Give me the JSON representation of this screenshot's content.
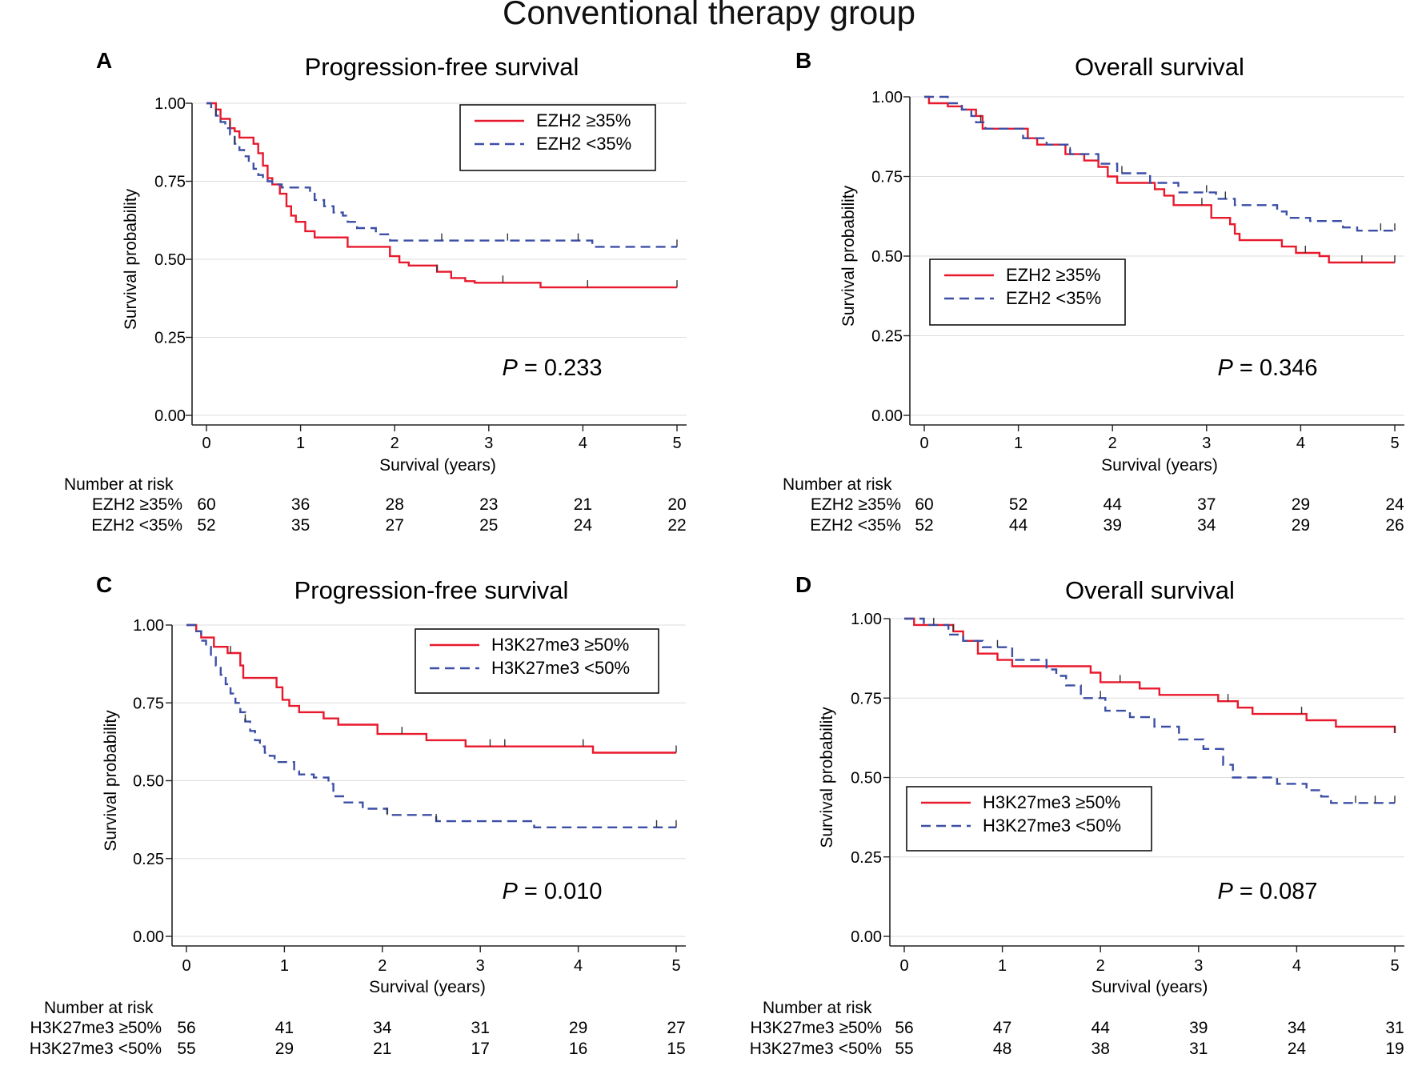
{
  "figure_title": "Conventional therapy group",
  "colors": {
    "series_a": "#e8192c",
    "series_b": "#3c4fa5",
    "axis": "#222222",
    "grid": "#dddddd"
  },
  "chart_data": [
    {
      "type": "line",
      "panel_label": "A",
      "title": "Progression-free survival",
      "xlabel": "Survival (years)",
      "ylabel": "Survival probability",
      "xlim": [
        0,
        5
      ],
      "ylim": [
        0,
        1
      ],
      "xticks": [
        "0",
        "1",
        "2",
        "3",
        "4",
        "5"
      ],
      "yticks": [
        "0.00",
        "0.25",
        "0.50",
        "0.75",
        "1.00"
      ],
      "legend_position": "top-right",
      "p_value": "= 0.233",
      "series": [
        {
          "name": "EZH2 ≥35%",
          "style": "solid",
          "x": [
            0,
            0.1,
            0.15,
            0.25,
            0.3,
            0.35,
            0.5,
            0.55,
            0.6,
            0.65,
            0.7,
            0.78,
            0.85,
            0.9,
            0.95,
            1.05,
            1.15,
            1.5,
            1.95,
            2.05,
            2.15,
            2.45,
            2.6,
            2.75,
            2.85,
            3.55,
            5
          ],
          "y": [
            1.0,
            0.98,
            0.95,
            0.92,
            0.91,
            0.89,
            0.87,
            0.84,
            0.8,
            0.76,
            0.74,
            0.71,
            0.67,
            0.64,
            0.62,
            0.59,
            0.57,
            0.54,
            0.51,
            0.49,
            0.48,
            0.46,
            0.44,
            0.43,
            0.425,
            0.41,
            0.41
          ],
          "censor_x": [
            0.25,
            2.45,
            3.15,
            4.05,
            5.0
          ]
        },
        {
          "name": "EZH2 <35%",
          "style": "dashed",
          "x": [
            0,
            0.05,
            0.1,
            0.15,
            0.2,
            0.25,
            0.3,
            0.35,
            0.4,
            0.45,
            0.5,
            0.55,
            0.6,
            0.65,
            0.7,
            0.8,
            1.1,
            1.15,
            1.25,
            1.35,
            1.45,
            1.5,
            1.6,
            1.8,
            1.95,
            4.1,
            5
          ],
          "y": [
            1.0,
            0.98,
            0.96,
            0.94,
            0.92,
            0.9,
            0.87,
            0.85,
            0.83,
            0.81,
            0.79,
            0.77,
            0.76,
            0.75,
            0.74,
            0.73,
            0.71,
            0.69,
            0.67,
            0.65,
            0.64,
            0.62,
            0.6,
            0.58,
            0.56,
            0.54,
            0.54
          ],
          "censor_x": [
            0.1,
            0.3,
            2.5,
            3.2,
            3.95,
            5.0
          ]
        }
      ],
      "risk_table": {
        "header": "Number at risk",
        "rows": [
          {
            "label": "EZH2 ≥35%",
            "values": [
              "60",
              "36",
              "28",
              "23",
              "21",
              "20"
            ]
          },
          {
            "label": "EZH2 <35%",
            "values": [
              "52",
              "35",
              "27",
              "25",
              "24",
              "22"
            ]
          }
        ]
      }
    },
    {
      "type": "line",
      "panel_label": "B",
      "title": "Overall survival",
      "xlabel": "Survival (years)",
      "ylabel": "Survival probability",
      "xlim": [
        0,
        5
      ],
      "ylim": [
        0,
        1
      ],
      "xticks": [
        "0",
        "1",
        "2",
        "3",
        "4",
        "5"
      ],
      "yticks": [
        "0.00",
        "0.25",
        "0.50",
        "0.75",
        "1.00"
      ],
      "legend_position": "middle-left",
      "p_value": "= 0.346",
      "series": [
        {
          "name": "EZH2 ≥35%",
          "style": "solid",
          "x": [
            0,
            0.05,
            0.25,
            0.4,
            0.55,
            0.62,
            0.85,
            1.1,
            1.2,
            1.5,
            1.7,
            1.85,
            1.95,
            2.05,
            2.45,
            2.55,
            2.65,
            2.8,
            3.05,
            3.25,
            3.3,
            3.35,
            3.8,
            3.95,
            4.1,
            4.2,
            4.3,
            5
          ],
          "y": [
            1.0,
            0.98,
            0.97,
            0.96,
            0.94,
            0.9,
            0.9,
            0.87,
            0.85,
            0.82,
            0.8,
            0.78,
            0.75,
            0.73,
            0.71,
            0.69,
            0.66,
            0.66,
            0.62,
            0.6,
            0.57,
            0.55,
            0.53,
            0.51,
            0.51,
            0.5,
            0.48,
            0.48
          ],
          "censor_x": [
            1.55,
            2.95,
            4.05,
            4.65,
            5.0
          ]
        },
        {
          "name": "EZH2 <35%",
          "style": "dashed",
          "x": [
            0,
            0.25,
            0.4,
            0.5,
            0.55,
            0.65,
            1.05,
            1.3,
            1.55,
            1.85,
            2.05,
            2.4,
            2.7,
            3.1,
            3.3,
            3.75,
            3.85,
            4.1,
            4.45,
            4.6,
            5
          ],
          "y": [
            1.0,
            0.98,
            0.96,
            0.94,
            0.92,
            0.9,
            0.87,
            0.85,
            0.82,
            0.79,
            0.76,
            0.73,
            0.7,
            0.68,
            0.66,
            0.64,
            0.62,
            0.61,
            0.59,
            0.58,
            0.58
          ],
          "censor_x": [
            0.6,
            2.1,
            3.0,
            3.2,
            4.85,
            5.0
          ]
        }
      ],
      "risk_table": {
        "header": "Number at risk",
        "rows": [
          {
            "label": "EZH2 ≥35%",
            "values": [
              "60",
              "52",
              "44",
              "37",
              "29",
              "24"
            ]
          },
          {
            "label": "EZH2 <35%",
            "values": [
              "52",
              "44",
              "39",
              "34",
              "29",
              "26"
            ]
          }
        ]
      }
    },
    {
      "type": "line",
      "panel_label": "C",
      "title": "Progression-free survival",
      "xlabel": "Survival (years)",
      "ylabel": "Survival probability",
      "xlim": [
        0,
        5
      ],
      "ylim": [
        0,
        1
      ],
      "xticks": [
        "0",
        "1",
        "2",
        "3",
        "4",
        "5"
      ],
      "yticks": [
        "0.00",
        "0.25",
        "0.50",
        "0.75",
        "1.00"
      ],
      "legend_position": "top-right",
      "p_value": "= 0.010",
      "series": [
        {
          "name": "H3K27me3 ≥50%",
          "style": "solid",
          "x": [
            0,
            0.1,
            0.15,
            0.28,
            0.42,
            0.55,
            0.58,
            0.92,
            0.98,
            1.05,
            1.15,
            1.4,
            1.55,
            1.95,
            2.45,
            2.85,
            4.15,
            5
          ],
          "y": [
            1.0,
            0.98,
            0.96,
            0.93,
            0.91,
            0.87,
            0.83,
            0.8,
            0.76,
            0.74,
            0.72,
            0.7,
            0.68,
            0.65,
            0.63,
            0.61,
            0.59,
            0.59
          ],
          "censor_x": [
            0.45,
            2.2,
            3.1,
            3.25,
            4.05,
            5.0
          ]
        },
        {
          "name": "H3K27me3 <50%",
          "style": "dashed",
          "x": [
            0,
            0.1,
            0.15,
            0.2,
            0.25,
            0.3,
            0.35,
            0.4,
            0.45,
            0.5,
            0.55,
            0.6,
            0.65,
            0.7,
            0.75,
            0.8,
            0.85,
            0.9,
            1.1,
            1.15,
            1.3,
            1.45,
            1.5,
            1.6,
            1.8,
            2.05,
            2.55,
            3.55,
            5
          ],
          "y": [
            1.0,
            0.98,
            0.95,
            0.93,
            0.9,
            0.87,
            0.84,
            0.81,
            0.78,
            0.75,
            0.72,
            0.69,
            0.66,
            0.63,
            0.61,
            0.59,
            0.58,
            0.56,
            0.53,
            0.52,
            0.51,
            0.49,
            0.45,
            0.43,
            0.41,
            0.39,
            0.37,
            0.35,
            0.35
          ],
          "censor_x": [
            0.6,
            2.05,
            2.55,
            4.8,
            5.0
          ]
        }
      ],
      "risk_table": {
        "header": "Number at risk",
        "rows": [
          {
            "label": "H3K27me3 ≥50%",
            "values": [
              "56",
              "41",
              "34",
              "31",
              "29",
              "27"
            ]
          },
          {
            "label": "H3K27me3 <50%",
            "values": [
              "55",
              "29",
              "21",
              "17",
              "16",
              "15"
            ]
          }
        ]
      }
    },
    {
      "type": "line",
      "panel_label": "D",
      "title": "Overall survival",
      "xlabel": "Survival (years)",
      "ylabel": "Survival probability",
      "xlim": [
        0,
        5
      ],
      "ylim": [
        0,
        1
      ],
      "xticks": [
        "0",
        "1",
        "2",
        "3",
        "4",
        "5"
      ],
      "yticks": [
        "0.00",
        "0.25",
        "0.50",
        "0.75",
        "1.00"
      ],
      "legend_position": "bottom-left",
      "p_value": "= 0.087",
      "series": [
        {
          "name": "H3K27me3 ≥50%",
          "style": "solid",
          "x": [
            0,
            0.1,
            0.5,
            0.6,
            0.75,
            0.95,
            1.1,
            1.9,
            2.0,
            2.4,
            2.6,
            3.2,
            3.4,
            3.55,
            4.1,
            4.4,
            5
          ],
          "y": [
            1.0,
            0.98,
            0.96,
            0.93,
            0.89,
            0.87,
            0.85,
            0.83,
            0.8,
            0.78,
            0.76,
            0.74,
            0.72,
            0.7,
            0.68,
            0.66,
            0.64
          ],
          "censor_x": [
            0.5,
            2.2,
            3.3,
            4.05,
            5.0
          ]
        },
        {
          "name": "H3K27me3 <50%",
          "style": "dashed",
          "x": [
            0,
            0.2,
            0.45,
            0.6,
            0.8,
            1.1,
            1.45,
            1.55,
            1.65,
            1.8,
            2.05,
            2.3,
            2.55,
            2.8,
            3.05,
            3.25,
            3.35,
            3.8,
            4.1,
            4.25,
            4.35,
            5
          ],
          "y": [
            1.0,
            0.98,
            0.95,
            0.93,
            0.91,
            0.87,
            0.84,
            0.82,
            0.79,
            0.75,
            0.71,
            0.69,
            0.66,
            0.62,
            0.59,
            0.54,
            0.5,
            0.48,
            0.46,
            0.44,
            0.42,
            0.42
          ],
          "censor_x": [
            0.3,
            0.95,
            2.0,
            4.6,
            4.8,
            5.0
          ]
        }
      ],
      "risk_table": {
        "header": "Number at risk",
        "rows": [
          {
            "label": "H3K27me3 ≥50%",
            "values": [
              "56",
              "47",
              "44",
              "39",
              "34",
              "31"
            ]
          },
          {
            "label": "H3K27me3 <50%",
            "values": [
              "55",
              "48",
              "38",
              "31",
              "24",
              "19"
            ]
          }
        ]
      }
    }
  ]
}
